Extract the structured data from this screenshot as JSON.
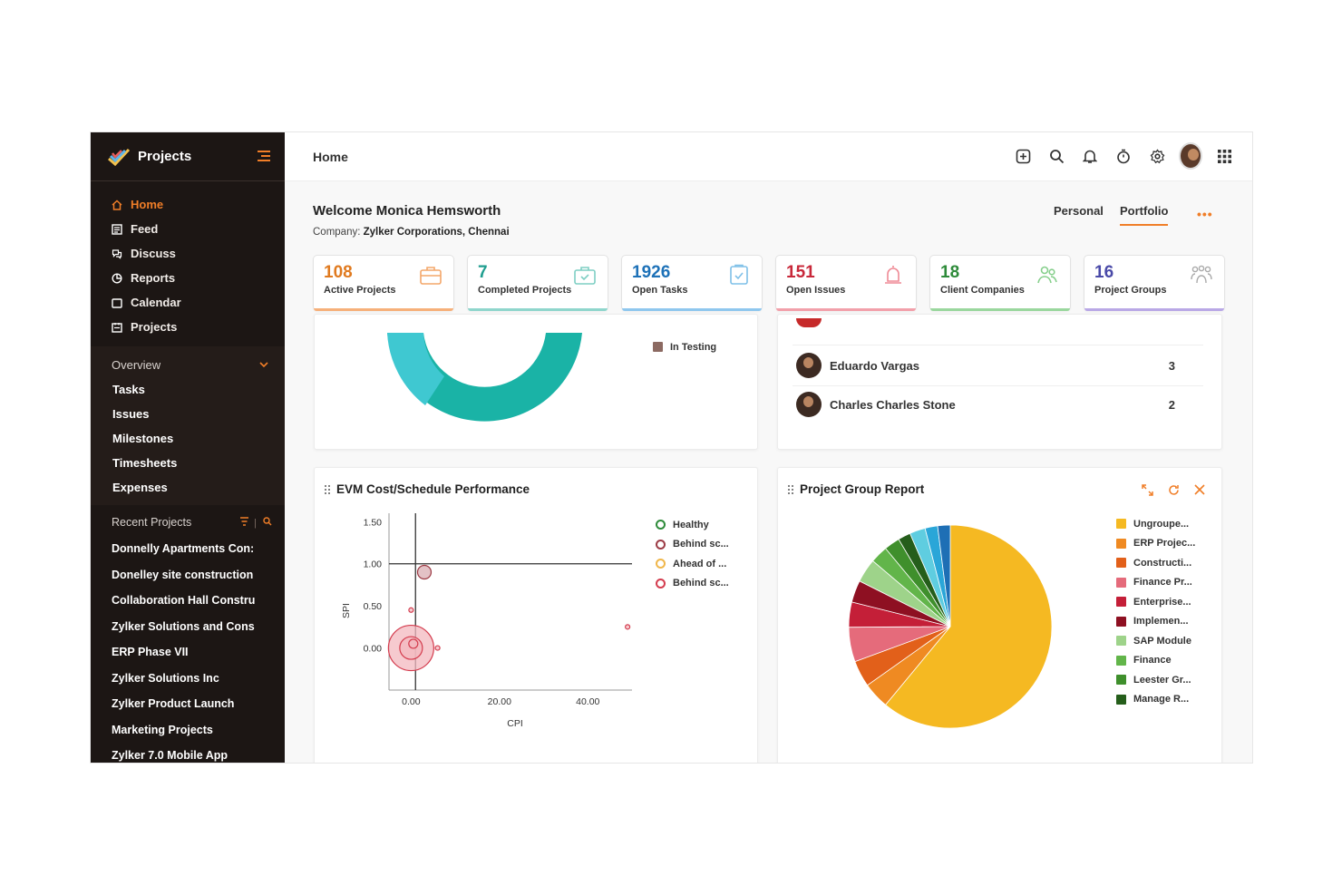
{
  "sidebar": {
    "app_name": "Projects",
    "nav": [
      {
        "label": "Home",
        "icon": "home-icon",
        "active": true
      },
      {
        "label": "Feed",
        "icon": "feed-icon"
      },
      {
        "label": "Discuss",
        "icon": "discuss-icon"
      },
      {
        "label": "Reports",
        "icon": "reports-icon"
      },
      {
        "label": "Calendar",
        "icon": "calendar-icon"
      },
      {
        "label": "Projects",
        "icon": "projects-icon"
      }
    ],
    "overview": {
      "label": "Overview",
      "items": [
        "Tasks",
        "Issues",
        "Milestones",
        "Timesheets",
        "Expenses"
      ]
    },
    "recent": {
      "label": "Recent Projects",
      "items": [
        "Donnelly Apartments Con:",
        "Donelley site construction",
        "Collaboration Hall Constru",
        "Zylker Solutions and Cons",
        "ERP Phase VII",
        "Zylker Solutions Inc",
        "Zylker Product Launch",
        "Marketing Projects",
        "Zylker 7.0 Mobile App"
      ]
    }
  },
  "header": {
    "breadcrumb": "Home"
  },
  "welcome": {
    "greeting": "Welcome Monica Hemsworth",
    "company_label": "Company:",
    "company": "Zylker Corporations, Chennai",
    "tabs": [
      "Personal",
      "Portfolio"
    ],
    "more": "•••"
  },
  "cards": [
    {
      "value": "108",
      "label": "Active Projects",
      "color": "#e07a1f",
      "icon": "briefcase-icon"
    },
    {
      "value": "7",
      "label": "Completed Projects",
      "color": "#1f9e8f",
      "icon": "briefcase-check-icon"
    },
    {
      "value": "1926",
      "label": "Open Tasks",
      "color": "#1e72b8",
      "icon": "clipboard-icon"
    },
    {
      "value": "151",
      "label": "Open Issues",
      "color": "#c8283a",
      "icon": "bug-icon"
    },
    {
      "value": "18",
      "label": "Client Companies",
      "color": "#2e8b3a",
      "icon": "users-icon"
    },
    {
      "value": "16",
      "label": "Project Groups",
      "color": "#4a4aa8",
      "icon": "group-icon"
    }
  ],
  "status_panel": {
    "legend_item": "In Testing"
  },
  "people_panel": {
    "people": [
      {
        "name": "Eduardo Vargas",
        "count": "3"
      },
      {
        "name": "Charles Charles Stone",
        "count": "2"
      }
    ]
  },
  "evm": {
    "title": "EVM Cost/Schedule Performance",
    "legend": [
      {
        "label": "Healthy",
        "color": "#2e8b3a"
      },
      {
        "label": "Behind sc...",
        "color": "#9c3b45"
      },
      {
        "label": "Ahead of ...",
        "color": "#f0b64a"
      },
      {
        "label": "Behind sc...",
        "color": "#d43c4e"
      }
    ]
  },
  "group_report": {
    "title": "Project Group Report",
    "legend": [
      {
        "label": "Ungroupe...",
        "color": "#f5b922"
      },
      {
        "label": "ERP Projec...",
        "color": "#ef8a22"
      },
      {
        "label": "Constructi...",
        "color": "#e2601a"
      },
      {
        "label": "Finance Pr...",
        "color": "#e56b7b"
      },
      {
        "label": "Enterprise...",
        "color": "#c41f38"
      },
      {
        "label": "Implemen...",
        "color": "#8e1022"
      },
      {
        "label": "SAP Module",
        "color": "#9ed38a"
      },
      {
        "label": "Finance",
        "color": "#62b54a"
      },
      {
        "label": "Leester Gr...",
        "color": "#3f8f2c"
      },
      {
        "label": "Manage R...",
        "color": "#255e1b"
      }
    ]
  },
  "chart_data": [
    {
      "type": "scatter",
      "title": "EVM Cost/Schedule Performance",
      "xlabel": "CPI",
      "ylabel": "SPI",
      "xlim": [
        -5,
        50
      ],
      "ylim": [
        -0.5,
        1.6
      ],
      "xticks": [
        "0.00",
        "20.00",
        "40.00"
      ],
      "yticks": [
        "1.50",
        "1.00",
        "0.50",
        "0.00"
      ],
      "reference_lines": {
        "x": 1,
        "y": 1
      },
      "series": [
        {
          "name": "Healthy",
          "points": []
        },
        {
          "name": "Behind sc...",
          "points": [
            {
              "x": 3,
              "y": 0.9,
              "r": 1.5
            }
          ]
        },
        {
          "name": "Ahead of ...",
          "points": []
        },
        {
          "name": "Behind sc...",
          "points": [
            {
              "x": 0,
              "y": 0,
              "r": 5
            },
            {
              "x": 0,
              "y": 0,
              "r": 2.5
            },
            {
              "x": 0.5,
              "y": 0.05,
              "r": 1
            },
            {
              "x": 0,
              "y": 0.45,
              "r": 0.5
            },
            {
              "x": 6,
              "y": 0,
              "r": 0.5
            },
            {
              "x": 49,
              "y": 0.25,
              "r": 0.5
            }
          ]
        }
      ]
    },
    {
      "type": "pie",
      "title": "Project Group Report",
      "slices": [
        {
          "label": "Ungroupe...",
          "value": 61,
          "color": "#f5b922"
        },
        {
          "label": "ERP Projec...",
          "value": 4.2,
          "color": "#ef8a22"
        },
        {
          "label": "Constructi...",
          "value": 4.2,
          "color": "#e2601a"
        },
        {
          "label": "Finance Pr...",
          "value": 5.5,
          "color": "#e56b7b"
        },
        {
          "label": "Enterprise...",
          "value": 4,
          "color": "#c41f38"
        },
        {
          "label": "Implemen...",
          "value": 3.5,
          "color": "#8e1022"
        },
        {
          "label": "SAP Module",
          "value": 3.8,
          "color": "#9ed38a"
        },
        {
          "label": "Finance",
          "value": 2.8,
          "color": "#62b54a"
        },
        {
          "label": "Leester Gr...",
          "value": 2.5,
          "color": "#3f8f2c"
        },
        {
          "label": "Manage R...",
          "value": 2,
          "color": "#255e1b"
        },
        {
          "label": "",
          "value": 2.5,
          "color": "#5fcde0"
        },
        {
          "label": "",
          "value": 2,
          "color": "#2aa6d8"
        },
        {
          "label": "",
          "value": 2,
          "color": "#1e6fb5"
        }
      ]
    }
  ]
}
